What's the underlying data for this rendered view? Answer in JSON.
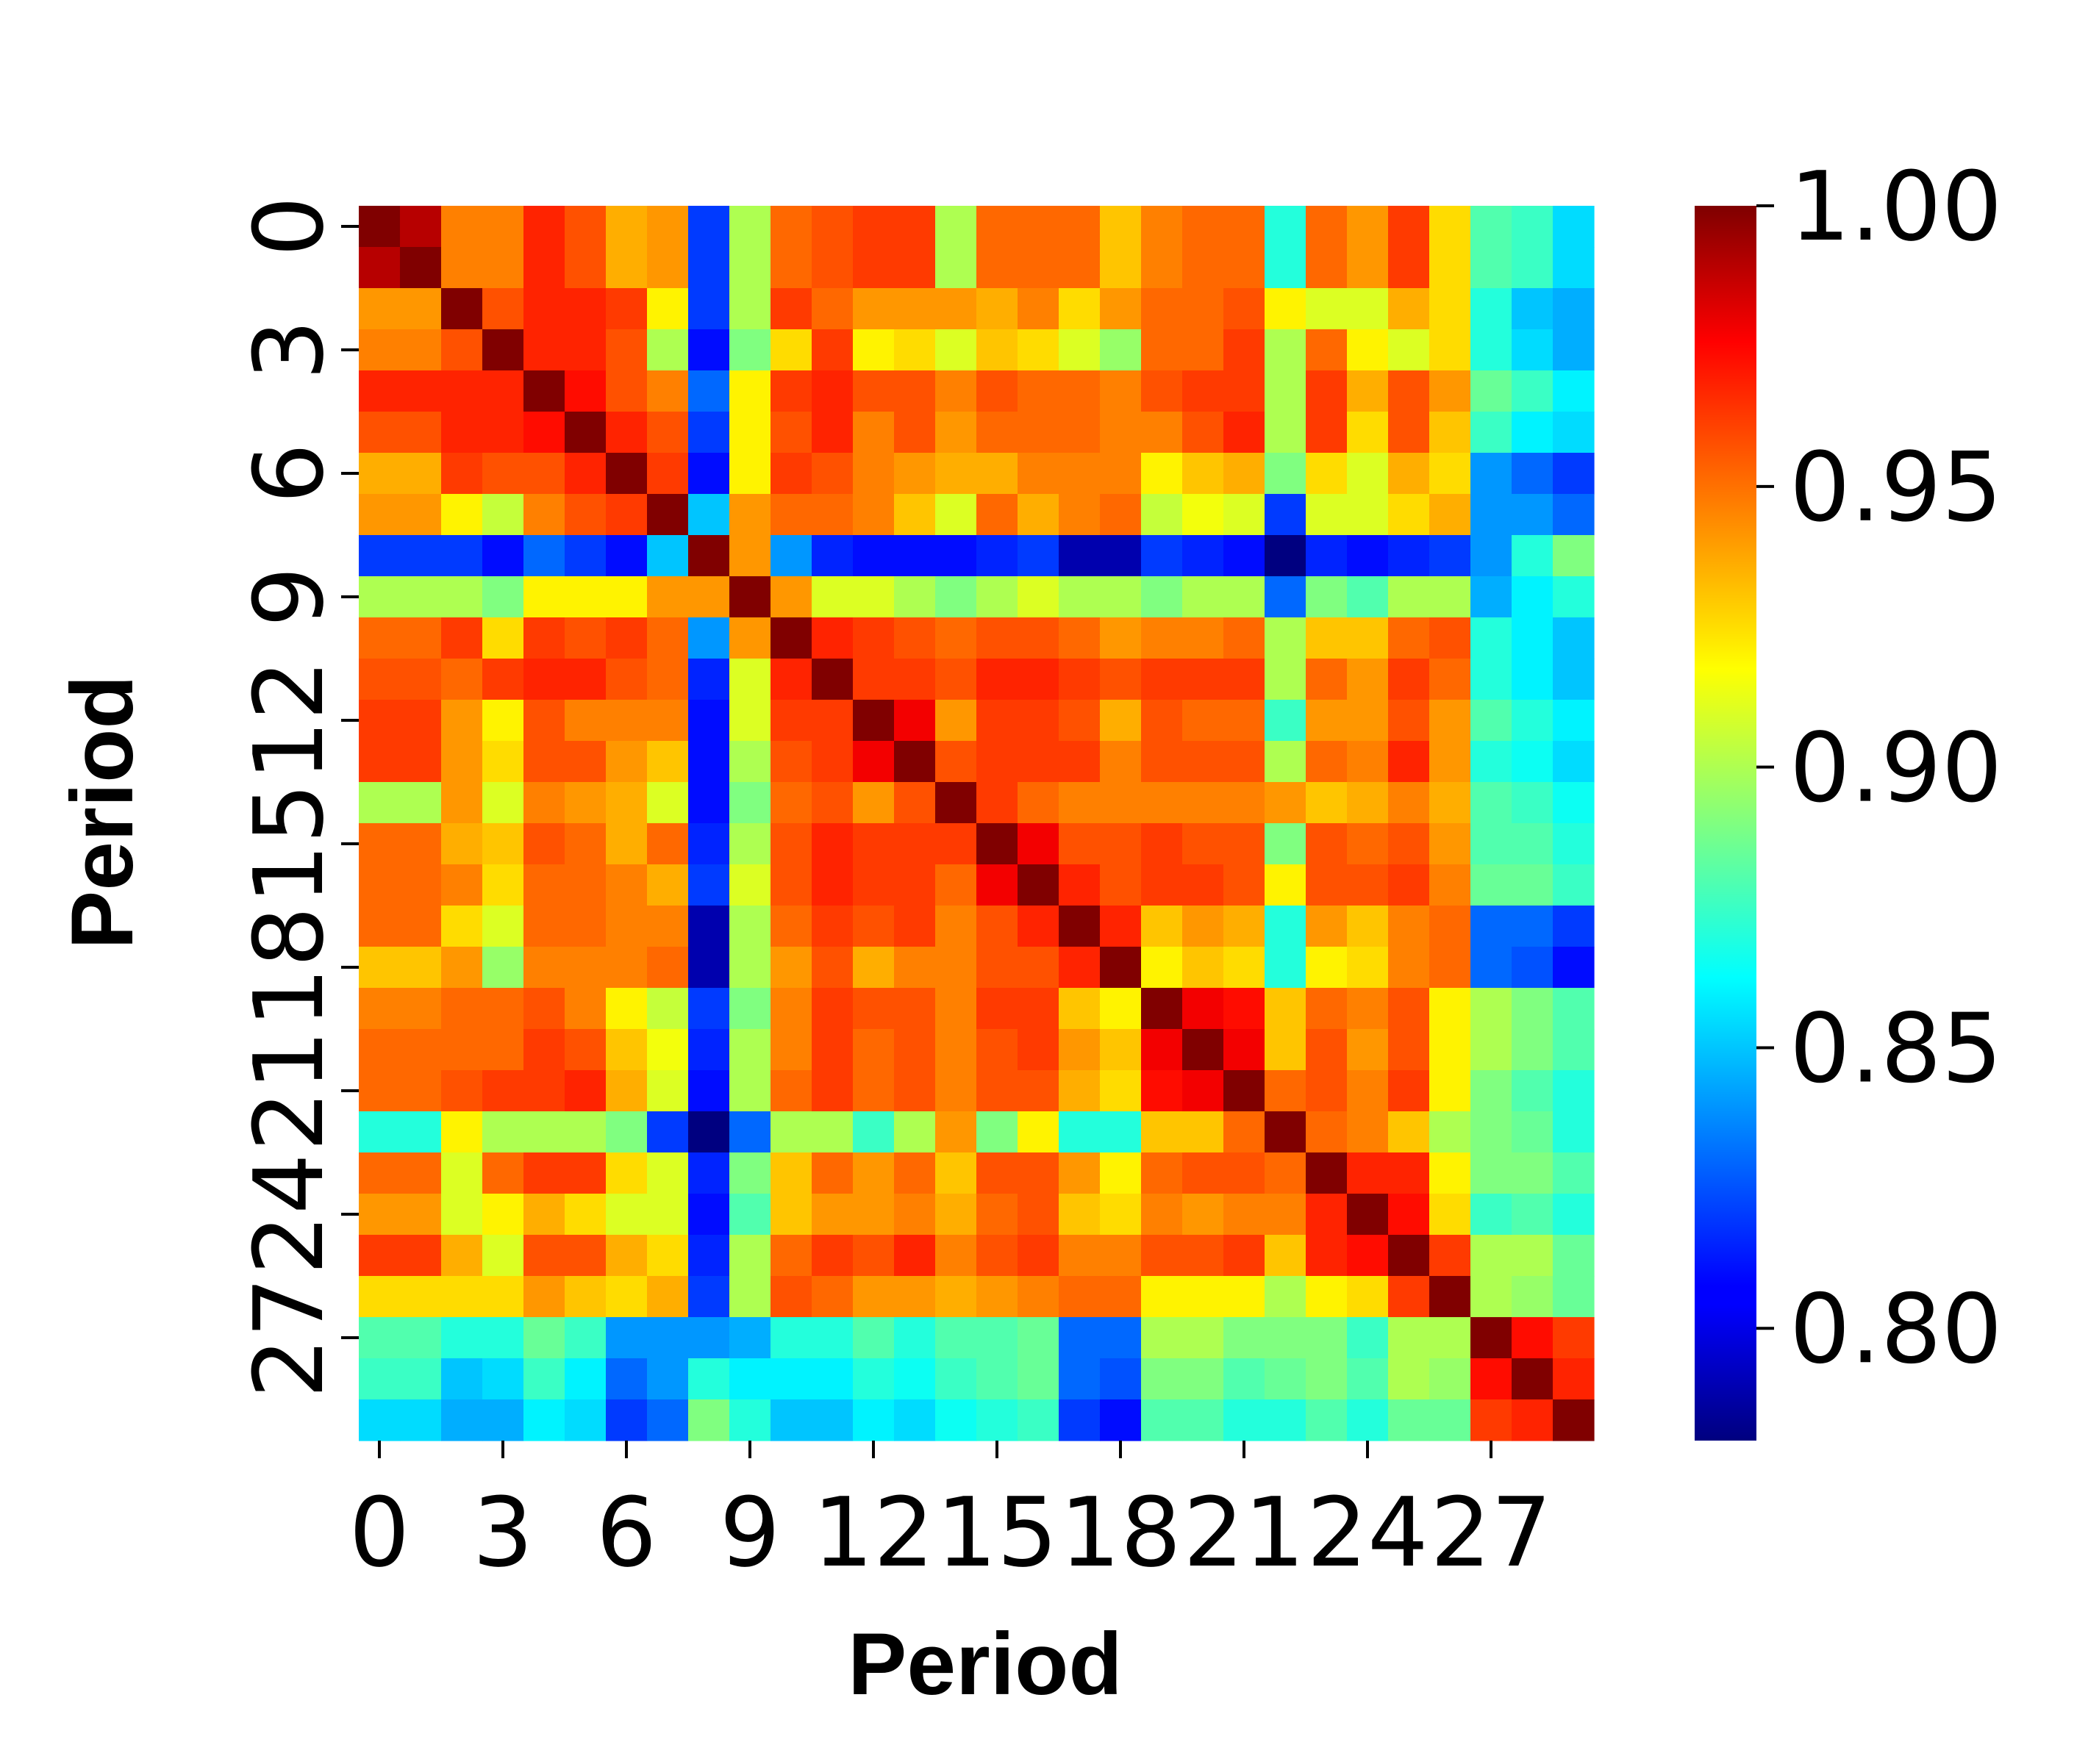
{
  "chart_data": {
    "type": "heatmap",
    "xlabel": "Period",
    "ylabel": "Period",
    "x_ticks": [
      "0",
      "3",
      "6",
      "9",
      "12",
      "15",
      "18",
      "21",
      "24",
      "27"
    ],
    "y_ticks": [
      "0",
      "3",
      "6",
      "9",
      "12",
      "15",
      "18",
      "21",
      "24",
      "27"
    ],
    "tick_positions": [
      0,
      3,
      6,
      9,
      12,
      15,
      18,
      21,
      24,
      27
    ],
    "n_rows": 30,
    "n_cols": 30,
    "vmin": 0.78,
    "vmax": 1.0,
    "colormap": "jet",
    "colorbar_ticks": [
      1.0,
      0.95,
      0.9,
      0.85,
      0.8
    ],
    "colorbar_tick_labels": [
      "1.00",
      "0.95",
      "0.90",
      "0.85",
      "0.80"
    ],
    "values": [
      [
        1.0,
        0.988,
        0.945,
        0.945,
        0.965,
        0.955,
        0.935,
        0.94,
        0.82,
        0.9,
        0.95,
        0.955,
        0.96,
        0.96,
        0.9,
        0.95,
        0.95,
        0.95,
        0.93,
        0.945,
        0.95,
        0.95,
        0.87,
        0.95,
        0.94,
        0.96,
        0.925,
        0.88,
        0.875,
        0.855
      ],
      [
        0.988,
        1.0,
        0.945,
        0.945,
        0.965,
        0.955,
        0.935,
        0.94,
        0.82,
        0.9,
        0.95,
        0.955,
        0.96,
        0.96,
        0.9,
        0.95,
        0.95,
        0.95,
        0.93,
        0.945,
        0.95,
        0.95,
        0.87,
        0.95,
        0.94,
        0.96,
        0.925,
        0.88,
        0.875,
        0.855
      ],
      [
        0.94,
        0.94,
        1.0,
        0.955,
        0.965,
        0.965,
        0.96,
        0.92,
        0.82,
        0.9,
        0.96,
        0.95,
        0.94,
        0.94,
        0.94,
        0.935,
        0.945,
        0.925,
        0.94,
        0.95,
        0.95,
        0.955,
        0.92,
        0.91,
        0.91,
        0.935,
        0.925,
        0.87,
        0.85,
        0.845
      ],
      [
        0.945,
        0.945,
        0.955,
        1.0,
        0.965,
        0.965,
        0.955,
        0.9,
        0.81,
        0.89,
        0.925,
        0.96,
        0.92,
        0.925,
        0.91,
        0.93,
        0.925,
        0.91,
        0.895,
        0.95,
        0.95,
        0.96,
        0.9,
        0.95,
        0.92,
        0.91,
        0.925,
        0.87,
        0.855,
        0.845
      ],
      [
        0.965,
        0.965,
        0.965,
        0.965,
        1.0,
        0.97,
        0.955,
        0.945,
        0.83,
        0.92,
        0.96,
        0.965,
        0.955,
        0.955,
        0.945,
        0.955,
        0.95,
        0.95,
        0.945,
        0.955,
        0.96,
        0.96,
        0.9,
        0.96,
        0.935,
        0.955,
        0.94,
        0.885,
        0.875,
        0.86
      ],
      [
        0.955,
        0.955,
        0.965,
        0.965,
        0.97,
        1.0,
        0.965,
        0.955,
        0.82,
        0.92,
        0.955,
        0.965,
        0.945,
        0.955,
        0.94,
        0.95,
        0.95,
        0.95,
        0.945,
        0.945,
        0.955,
        0.965,
        0.9,
        0.96,
        0.925,
        0.955,
        0.93,
        0.875,
        0.86,
        0.855
      ],
      [
        0.935,
        0.935,
        0.96,
        0.955,
        0.955,
        0.965,
        1.0,
        0.96,
        0.81,
        0.92,
        0.96,
        0.955,
        0.945,
        0.94,
        0.935,
        0.935,
        0.945,
        0.945,
        0.945,
        0.92,
        0.93,
        0.935,
        0.89,
        0.925,
        0.91,
        0.935,
        0.925,
        0.84,
        0.83,
        0.82
      ],
      [
        0.94,
        0.94,
        0.92,
        0.905,
        0.945,
        0.955,
        0.96,
        1.0,
        0.85,
        0.94,
        0.95,
        0.95,
        0.945,
        0.93,
        0.91,
        0.95,
        0.935,
        0.945,
        0.95,
        0.905,
        0.915,
        0.91,
        0.82,
        0.91,
        0.91,
        0.925,
        0.935,
        0.84,
        0.84,
        0.83
      ],
      [
        0.82,
        0.82,
        0.82,
        0.81,
        0.83,
        0.82,
        0.81,
        0.85,
        1.0,
        0.94,
        0.84,
        0.815,
        0.81,
        0.81,
        0.81,
        0.815,
        0.82,
        0.79,
        0.79,
        0.82,
        0.815,
        0.81,
        0.78,
        0.815,
        0.81,
        0.815,
        0.82,
        0.84,
        0.87,
        0.89
      ],
      [
        0.9,
        0.9,
        0.9,
        0.89,
        0.92,
        0.92,
        0.92,
        0.94,
        0.94,
        1.0,
        0.94,
        0.91,
        0.91,
        0.9,
        0.89,
        0.9,
        0.91,
        0.9,
        0.9,
        0.89,
        0.9,
        0.9,
        0.83,
        0.89,
        0.88,
        0.9,
        0.9,
        0.845,
        0.86,
        0.87
      ],
      [
        0.95,
        0.95,
        0.96,
        0.925,
        0.96,
        0.955,
        0.96,
        0.95,
        0.84,
        0.94,
        1.0,
        0.965,
        0.96,
        0.955,
        0.95,
        0.955,
        0.955,
        0.95,
        0.94,
        0.945,
        0.945,
        0.95,
        0.9,
        0.93,
        0.93,
        0.95,
        0.955,
        0.87,
        0.86,
        0.85
      ],
      [
        0.955,
        0.955,
        0.95,
        0.96,
        0.965,
        0.965,
        0.955,
        0.95,
        0.815,
        0.91,
        0.965,
        1.0,
        0.96,
        0.96,
        0.955,
        0.965,
        0.965,
        0.96,
        0.955,
        0.96,
        0.96,
        0.96,
        0.9,
        0.95,
        0.94,
        0.96,
        0.95,
        0.87,
        0.86,
        0.85
      ],
      [
        0.96,
        0.96,
        0.94,
        0.92,
        0.955,
        0.945,
        0.945,
        0.945,
        0.81,
        0.91,
        0.96,
        0.96,
        1.0,
        0.975,
        0.94,
        0.96,
        0.96,
        0.955,
        0.935,
        0.955,
        0.95,
        0.95,
        0.875,
        0.94,
        0.94,
        0.955,
        0.94,
        0.88,
        0.87,
        0.86
      ],
      [
        0.96,
        0.96,
        0.94,
        0.925,
        0.955,
        0.955,
        0.94,
        0.93,
        0.81,
        0.9,
        0.955,
        0.96,
        0.975,
        1.0,
        0.955,
        0.96,
        0.96,
        0.96,
        0.945,
        0.955,
        0.955,
        0.955,
        0.9,
        0.95,
        0.945,
        0.965,
        0.94,
        0.87,
        0.865,
        0.855
      ],
      [
        0.9,
        0.9,
        0.94,
        0.91,
        0.945,
        0.94,
        0.935,
        0.91,
        0.81,
        0.89,
        0.95,
        0.955,
        0.94,
        0.955,
        1.0,
        0.96,
        0.95,
        0.945,
        0.945,
        0.945,
        0.945,
        0.945,
        0.94,
        0.93,
        0.935,
        0.945,
        0.935,
        0.88,
        0.875,
        0.865
      ],
      [
        0.95,
        0.95,
        0.935,
        0.93,
        0.955,
        0.95,
        0.935,
        0.95,
        0.815,
        0.9,
        0.955,
        0.965,
        0.96,
        0.96,
        0.96,
        1.0,
        0.975,
        0.955,
        0.955,
        0.96,
        0.955,
        0.955,
        0.89,
        0.955,
        0.95,
        0.955,
        0.94,
        0.88,
        0.88,
        0.87
      ],
      [
        0.95,
        0.95,
        0.945,
        0.925,
        0.95,
        0.95,
        0.945,
        0.935,
        0.82,
        0.91,
        0.955,
        0.965,
        0.96,
        0.96,
        0.95,
        0.975,
        1.0,
        0.965,
        0.955,
        0.96,
        0.96,
        0.955,
        0.92,
        0.955,
        0.955,
        0.96,
        0.945,
        0.885,
        0.885,
        0.875
      ],
      [
        0.95,
        0.95,
        0.925,
        0.91,
        0.95,
        0.95,
        0.945,
        0.945,
        0.79,
        0.9,
        0.95,
        0.96,
        0.955,
        0.96,
        0.945,
        0.955,
        0.965,
        1.0,
        0.965,
        0.93,
        0.94,
        0.935,
        0.87,
        0.94,
        0.93,
        0.945,
        0.95,
        0.83,
        0.83,
        0.82
      ],
      [
        0.93,
        0.93,
        0.94,
        0.895,
        0.945,
        0.945,
        0.945,
        0.95,
        0.79,
        0.9,
        0.94,
        0.955,
        0.935,
        0.945,
        0.945,
        0.955,
        0.955,
        0.965,
        1.0,
        0.92,
        0.93,
        0.925,
        0.87,
        0.92,
        0.925,
        0.945,
        0.95,
        0.83,
        0.825,
        0.81
      ],
      [
        0.945,
        0.945,
        0.95,
        0.95,
        0.955,
        0.945,
        0.92,
        0.905,
        0.82,
        0.89,
        0.945,
        0.96,
        0.955,
        0.955,
        0.945,
        0.96,
        0.96,
        0.93,
        0.92,
        1.0,
        0.975,
        0.97,
        0.93,
        0.95,
        0.945,
        0.955,
        0.92,
        0.9,
        0.89,
        0.88
      ],
      [
        0.95,
        0.95,
        0.95,
        0.95,
        0.96,
        0.955,
        0.93,
        0.915,
        0.815,
        0.9,
        0.945,
        0.96,
        0.95,
        0.955,
        0.945,
        0.955,
        0.96,
        0.94,
        0.93,
        0.975,
        1.0,
        0.975,
        0.93,
        0.955,
        0.94,
        0.955,
        0.92,
        0.9,
        0.89,
        0.88
      ],
      [
        0.95,
        0.95,
        0.955,
        0.96,
        0.96,
        0.965,
        0.935,
        0.91,
        0.81,
        0.9,
        0.95,
        0.96,
        0.95,
        0.955,
        0.945,
        0.955,
        0.955,
        0.935,
        0.925,
        0.97,
        0.975,
        1.0,
        0.95,
        0.955,
        0.945,
        0.96,
        0.92,
        0.89,
        0.88,
        0.87
      ],
      [
        0.87,
        0.87,
        0.92,
        0.9,
        0.9,
        0.9,
        0.89,
        0.82,
        0.78,
        0.83,
        0.9,
        0.9,
        0.875,
        0.9,
        0.94,
        0.89,
        0.92,
        0.87,
        0.87,
        0.93,
        0.93,
        0.95,
        1.0,
        0.95,
        0.945,
        0.93,
        0.9,
        0.89,
        0.885,
        0.87
      ],
      [
        0.95,
        0.95,
        0.91,
        0.95,
        0.96,
        0.96,
        0.925,
        0.91,
        0.815,
        0.89,
        0.93,
        0.95,
        0.94,
        0.95,
        0.93,
        0.955,
        0.955,
        0.94,
        0.92,
        0.95,
        0.955,
        0.955,
        0.95,
        1.0,
        0.965,
        0.965,
        0.92,
        0.89,
        0.89,
        0.88
      ],
      [
        0.94,
        0.94,
        0.91,
        0.92,
        0.935,
        0.925,
        0.91,
        0.91,
        0.81,
        0.88,
        0.93,
        0.94,
        0.94,
        0.945,
        0.935,
        0.95,
        0.955,
        0.93,
        0.925,
        0.945,
        0.94,
        0.945,
        0.945,
        0.965,
        1.0,
        0.97,
        0.925,
        0.875,
        0.88,
        0.87
      ],
      [
        0.96,
        0.96,
        0.935,
        0.91,
        0.955,
        0.955,
        0.935,
        0.925,
        0.815,
        0.9,
        0.95,
        0.96,
        0.955,
        0.965,
        0.945,
        0.955,
        0.96,
        0.945,
        0.945,
        0.955,
        0.955,
        0.96,
        0.93,
        0.965,
        0.97,
        1.0,
        0.96,
        0.9,
        0.9,
        0.885
      ],
      [
        0.925,
        0.925,
        0.925,
        0.925,
        0.94,
        0.93,
        0.925,
        0.935,
        0.82,
        0.9,
        0.955,
        0.95,
        0.94,
        0.94,
        0.935,
        0.94,
        0.945,
        0.95,
        0.95,
        0.92,
        0.92,
        0.92,
        0.9,
        0.92,
        0.925,
        0.96,
        1.0,
        0.9,
        0.895,
        0.885
      ],
      [
        0.88,
        0.88,
        0.87,
        0.87,
        0.885,
        0.875,
        0.84,
        0.84,
        0.84,
        0.845,
        0.87,
        0.87,
        0.88,
        0.87,
        0.88,
        0.88,
        0.885,
        0.83,
        0.83,
        0.9,
        0.9,
        0.89,
        0.89,
        0.89,
        0.875,
        0.9,
        0.9,
        1.0,
        0.97,
        0.96
      ],
      [
        0.875,
        0.875,
        0.85,
        0.855,
        0.875,
        0.86,
        0.83,
        0.84,
        0.87,
        0.86,
        0.86,
        0.86,
        0.87,
        0.865,
        0.875,
        0.88,
        0.885,
        0.83,
        0.825,
        0.89,
        0.89,
        0.88,
        0.885,
        0.89,
        0.88,
        0.9,
        0.895,
        0.97,
        1.0,
        0.965
      ],
      [
        0.855,
        0.855,
        0.845,
        0.845,
        0.86,
        0.855,
        0.82,
        0.83,
        0.89,
        0.87,
        0.85,
        0.85,
        0.86,
        0.855,
        0.865,
        0.87,
        0.875,
        0.82,
        0.81,
        0.88,
        0.88,
        0.87,
        0.87,
        0.88,
        0.87,
        0.885,
        0.885,
        0.96,
        0.965,
        1.0
      ]
    ]
  }
}
